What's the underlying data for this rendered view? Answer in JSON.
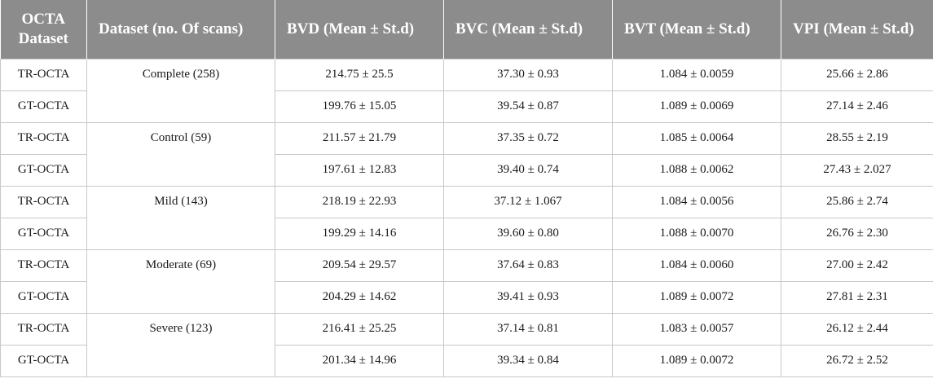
{
  "headers": [
    "OCTA Dataset",
    "Dataset (no. Of scans)",
    "BVD (Mean ± St.d)",
    "BVC (Mean ± St.d)",
    "BVT (Mean ± St.d)",
    "VPI (Mean ± St.d)"
  ],
  "groups": [
    {
      "name": "Complete (258)",
      "rows": [
        [
          "TR-OCTA",
          "214.75 ± 25.5",
          "37.30 ± 0.93",
          "1.084 ± 0.0059",
          "25.66 ± 2.86"
        ],
        [
          "GT-OCTA",
          "199.76 ± 15.05",
          "39.54 ± 0.87",
          "1.089 ± 0.0069",
          "27.14 ± 2.46"
        ]
      ]
    },
    {
      "name": "Control (59)",
      "rows": [
        [
          "TR-OCTA",
          "211.57 ± 21.79",
          "37.35 ± 0.72",
          "1.085 ± 0.0064",
          "28.55 ± 2.19"
        ],
        [
          "GT-OCTA",
          "197.61 ± 12.83",
          "39.40 ± 0.74",
          "1.088 ± 0.0062",
          "27.43 ± 2.027"
        ]
      ]
    },
    {
      "name": "Mild (143)",
      "rows": [
        [
          "TR-OCTA",
          "218.19 ± 22.93",
          "37.12 ± 1.067",
          "1.084 ± 0.0056",
          "25.86 ± 2.74"
        ],
        [
          "GT-OCTA",
          "199.29 ± 14.16",
          "39.60 ± 0.80",
          "1.088 ± 0.0070",
          "26.76 ± 2.30"
        ]
      ]
    },
    {
      "name": "Moderate (69)",
      "rows": [
        [
          "TR-OCTA",
          "209.54 ± 29.57",
          "37.64 ± 0.83",
          "1.084 ± 0.0060",
          "27.00 ± 2.42"
        ],
        [
          "GT-OCTA",
          "204.29 ± 14.62",
          "39.41 ± 0.93",
          "1.089 ± 0.0072",
          "27.81 ± 2.31"
        ]
      ]
    },
    {
      "name": "Severe (123)",
      "rows": [
        [
          "TR-OCTA",
          "216.41 ± 25.25",
          "37.14 ± 0.81",
          "1.083 ± 0.0057",
          "26.12 ± 2.44"
        ],
        [
          "GT-OCTA",
          "201.34 ± 14.96",
          "39.34 ± 0.84",
          "1.089 ± 0.0072",
          "26.72 ± 2.52"
        ]
      ]
    }
  ]
}
